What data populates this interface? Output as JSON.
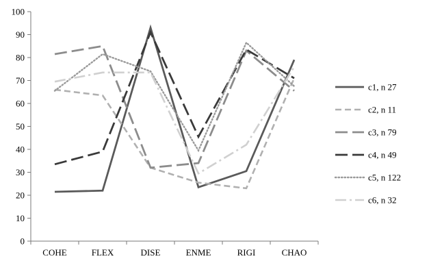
{
  "chart_data": {
    "type": "line",
    "categories": [
      "COHE",
      "FLEX",
      "DISE",
      "ENME",
      "RIGI",
      "CHAO"
    ],
    "ylim": [
      0,
      100
    ],
    "yticks": [
      0,
      10,
      20,
      30,
      40,
      50,
      60,
      70,
      80,
      90,
      100
    ],
    "grid": false,
    "legend": "right",
    "series": [
      {
        "name": "c1, n 27",
        "values": [
          21.5,
          22,
          93,
          23.5,
          30.5,
          79
        ],
        "color": "#5a5a5a",
        "dash": "solid"
      },
      {
        "name": "c2, n 11",
        "values": [
          66,
          63.5,
          32,
          25.5,
          23,
          71
        ],
        "color": "#b0b0b0",
        "dash": "medium-dash"
      },
      {
        "name": "c3, n 79",
        "values": [
          81.5,
          85,
          32,
          34,
          83,
          65.5
        ],
        "color": "#8c8c8c",
        "dash": "long-dash"
      },
      {
        "name": "c4, n 49",
        "values": [
          33.5,
          39,
          91,
          45.5,
          83.5,
          71
        ],
        "color": "#3a3a3a",
        "dash": "long-dash"
      },
      {
        "name": "c5, n 122",
        "values": [
          65.5,
          81.5,
          74,
          39.5,
          86.5,
          67.5
        ],
        "color": "#9a9a9a",
        "dash": "dotted"
      },
      {
        "name": "c6, n 32",
        "values": [
          69.5,
          73.5,
          73.5,
          29.5,
          42,
          76
        ],
        "color": "#d0d0d0",
        "dash": "dash-dot"
      }
    ]
  }
}
